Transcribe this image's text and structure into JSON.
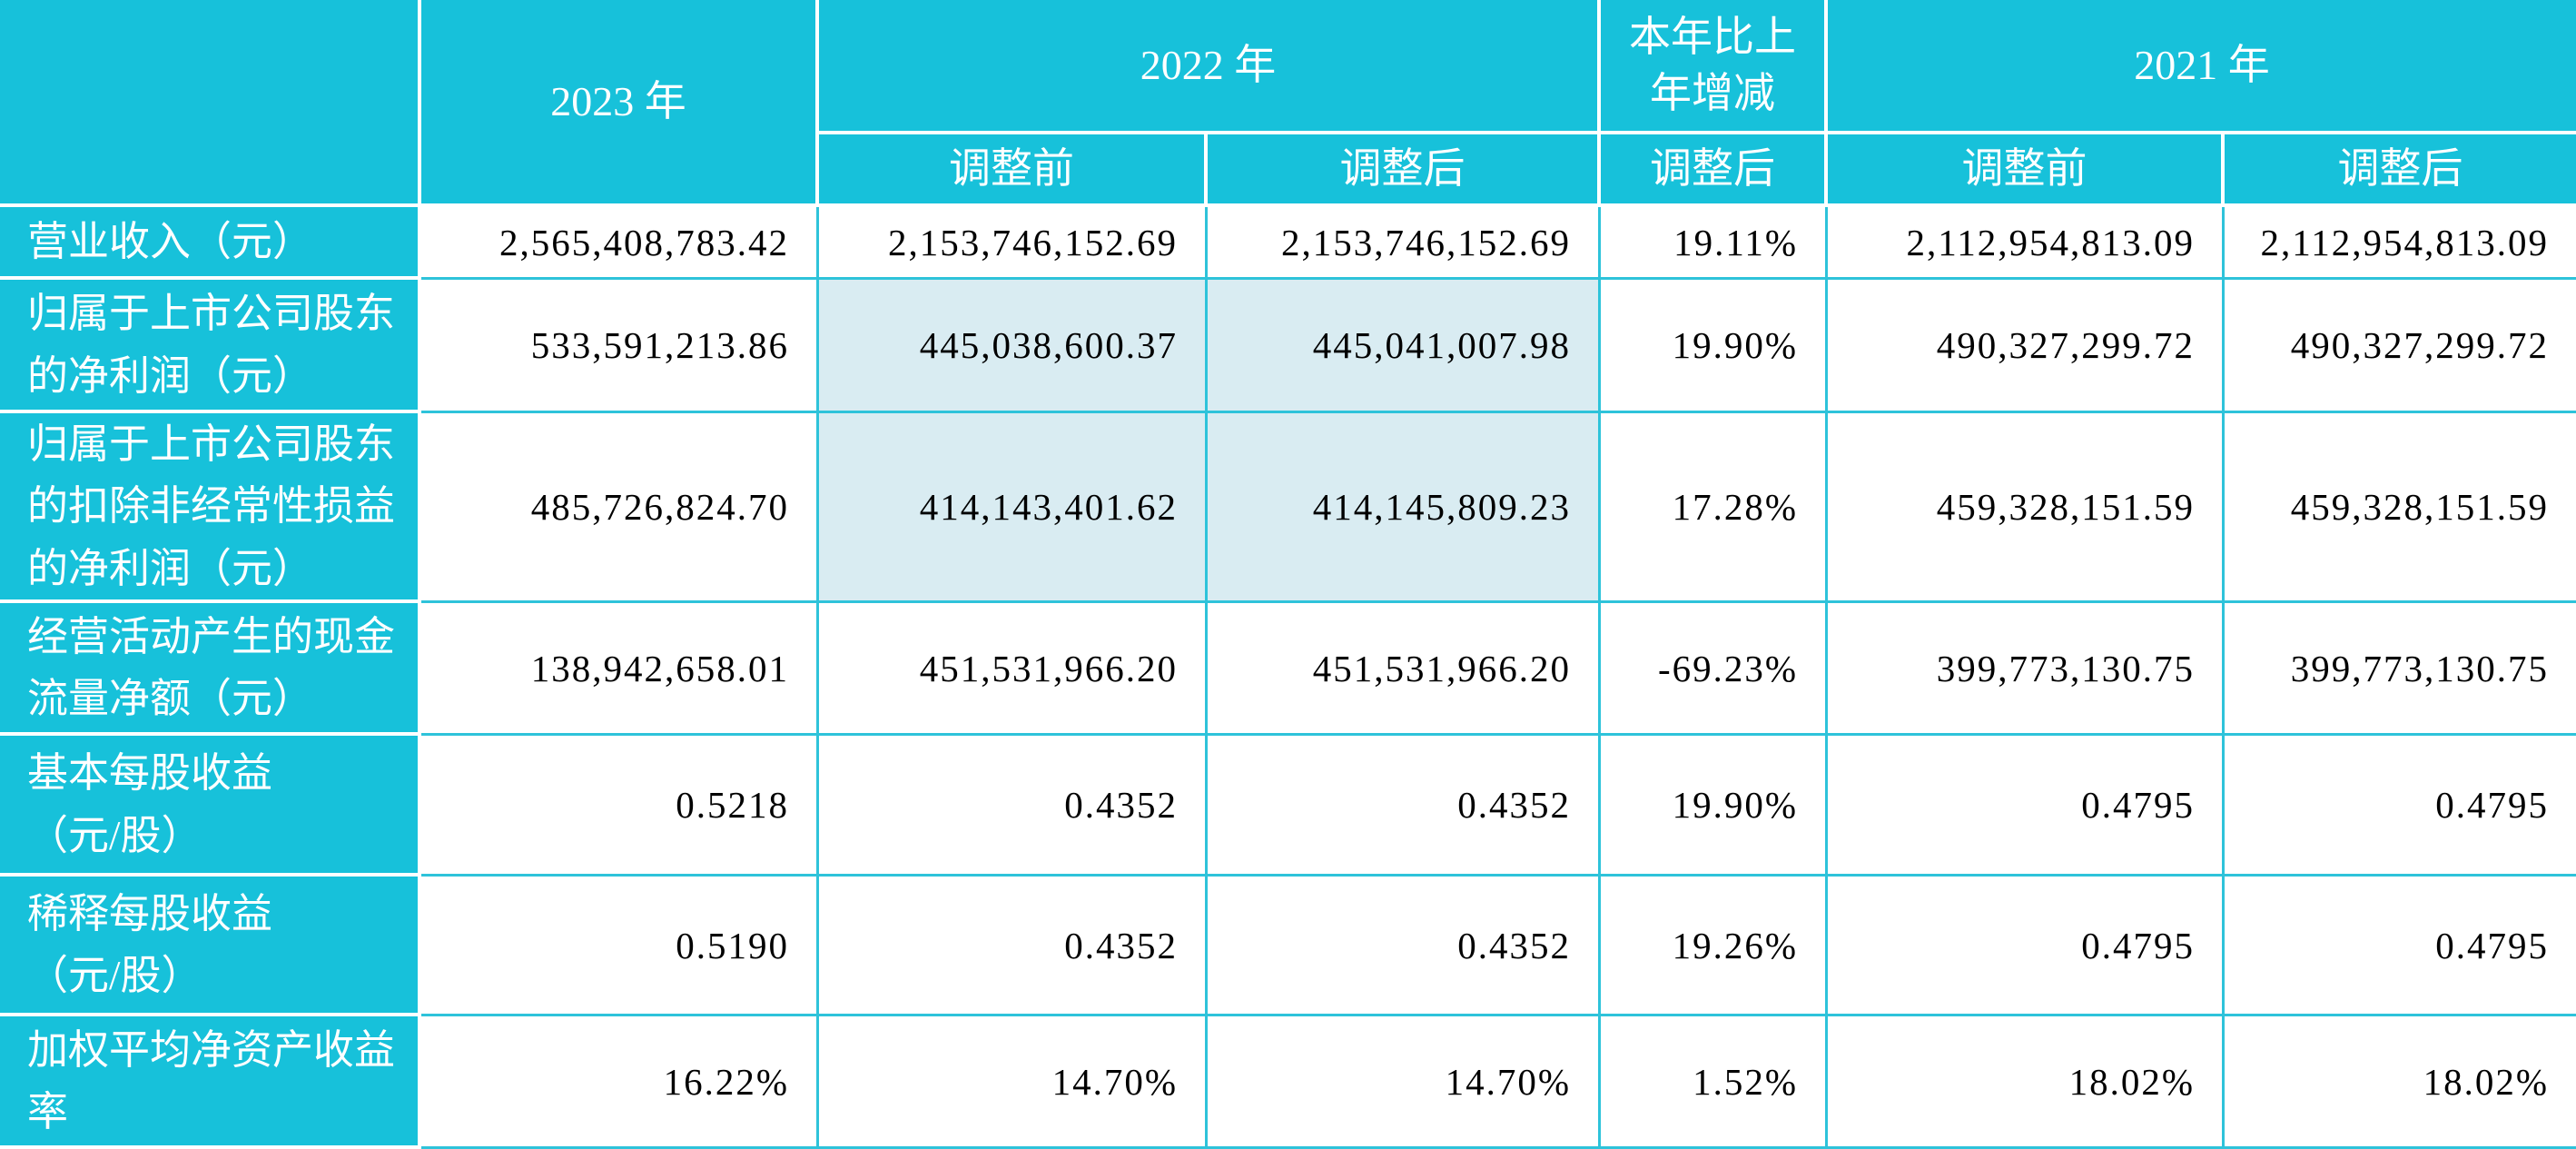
{
  "table": {
    "header": {
      "corner": "",
      "year_2023": "2023 年",
      "year_2022": "2022 年",
      "change_title": "本年比上\n年增减",
      "year_2021": "2021 年",
      "sub_2022_before": "调整前",
      "sub_2022_after": "调整后",
      "sub_change_after": "调整后",
      "sub_2021_before": "调整前",
      "sub_2021_after": "调整后"
    },
    "colors": {
      "header_bg": "#17c1da",
      "highlight_bg": "#d9ecf2",
      "grid_line": "#2ec3da",
      "header_grid_line": "#ffffff",
      "text": "#000000",
      "header_text": "#ffffff"
    },
    "rows": [
      {
        "label": "营业收入（元）",
        "y2023": "2,565,408,783.42",
        "y2022_before": "2,153,746,152.69",
        "y2022_after": "2,153,746,152.69",
        "change": "19.11%",
        "y2021_before": "2,112,954,813.09",
        "y2021_after": "2,112,954,813.09"
      },
      {
        "label": "归属于上市公司股东\n的净利润（元）",
        "y2023": "533,591,213.86",
        "y2022_before": "445,038,600.37",
        "y2022_after": "445,041,007.98",
        "change": "19.90%",
        "y2021_before": "490,327,299.72",
        "y2021_after": "490,327,299.72"
      },
      {
        "label": "归属于上市公司股东\n的扣除非经常性损益\n的净利润（元）",
        "y2023": "485,726,824.70",
        "y2022_before": "414,143,401.62",
        "y2022_after": "414,145,809.23",
        "change": "17.28%",
        "y2021_before": "459,328,151.59",
        "y2021_after": "459,328,151.59"
      },
      {
        "label": "经营活动产生的现金\n流量净额（元）",
        "y2023": "138,942,658.01",
        "y2022_before": "451,531,966.20",
        "y2022_after": "451,531,966.20",
        "change": "-69.23%",
        "y2021_before": "399,773,130.75",
        "y2021_after": "399,773,130.75"
      },
      {
        "label": "基本每股收益\n（元/股）",
        "y2023": "0.5218",
        "y2022_before": "0.4352",
        "y2022_after": "0.4352",
        "change": "19.90%",
        "y2021_before": "0.4795",
        "y2021_after": "0.4795"
      },
      {
        "label": "稀释每股收益\n（元/股）",
        "y2023": "0.5190",
        "y2022_before": "0.4352",
        "y2022_after": "0.4352",
        "change": "19.26%",
        "y2021_before": "0.4795",
        "y2021_after": "0.4795"
      },
      {
        "label": "加权平均净资产收益\n率",
        "y2023": "16.22%",
        "y2022_before": "14.70%",
        "y2022_after": "14.70%",
        "change": "1.52%",
        "y2021_before": "18.02%",
        "y2021_after": "18.02%"
      }
    ]
  }
}
